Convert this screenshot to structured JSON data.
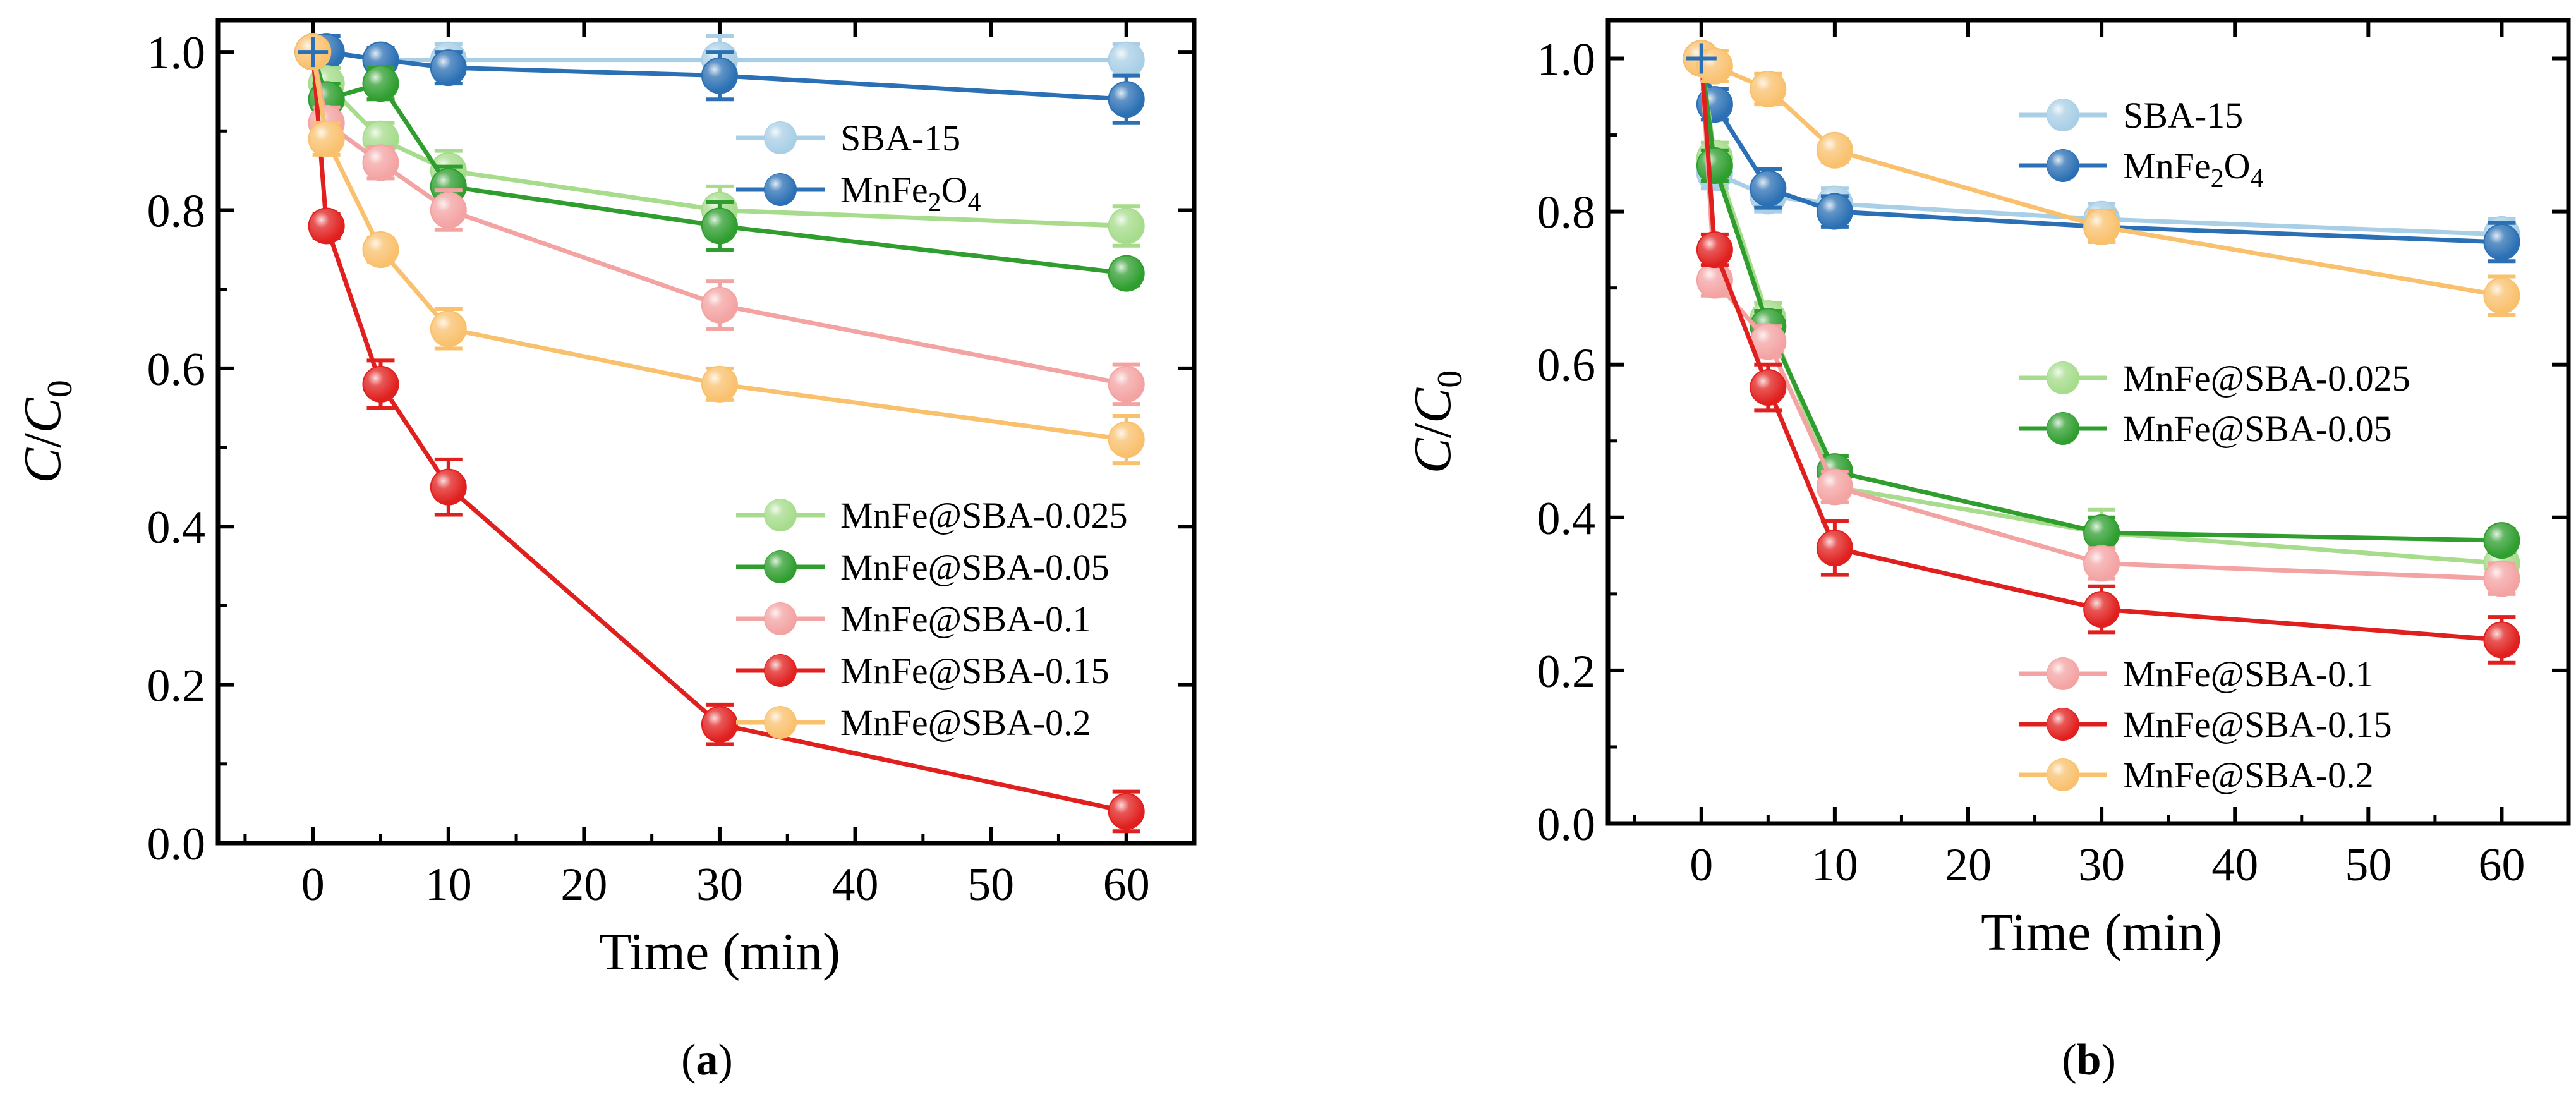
{
  "chart_data": [
    {
      "panel": "a",
      "type": "line",
      "caption": "(a)",
      "caption_bold": "a",
      "xlabel": "Time (min)",
      "ylabel_main": "C",
      "ylabel_sep": "/",
      "ylabel_sub": "0",
      "xlim": [
        -7,
        65
      ],
      "ylim": [
        0,
        1.04
      ],
      "xticks": [
        0,
        10,
        20,
        30,
        40,
        50,
        60
      ],
      "yticks": [
        0.0,
        0.2,
        0.4,
        0.6,
        0.8,
        1.0
      ],
      "ytick_labels": [
        "0.0",
        "0.2",
        "0.4",
        "0.6",
        "0.8",
        "1.0"
      ],
      "legend_groups": [
        {
          "anchor": "upper",
          "series": [
            "SBA-15",
            "MnFe2O4"
          ]
        },
        {
          "anchor": "lower",
          "series": [
            "MnFe@SBA-0.025",
            "MnFe@SBA-0.05",
            "MnFe@SBA-0.1",
            "MnFe@SBA-0.15",
            "MnFe@SBA-0.2"
          ]
        }
      ],
      "x": [
        0,
        1,
        5,
        10,
        30,
        60
      ],
      "series": [
        {
          "name": "SBA-15",
          "legend": "SBA-15",
          "color": "#a9cfe6",
          "values": [
            1.0,
            1.0,
            0.99,
            0.99,
            0.99,
            0.99
          ],
          "err": [
            0.0,
            0.02,
            0.015,
            0.02,
            0.03,
            0.02
          ]
        },
        {
          "name": "MnFe2O4",
          "legend_base": "MnFe",
          "legend_sub1": "2",
          "legend_mid": "O",
          "legend_sub2": "4",
          "color": "#2b70b4",
          "values": [
            1.0,
            1.0,
            0.99,
            0.98,
            0.97,
            0.94
          ],
          "err": [
            0.0,
            0.02,
            0.015,
            0.02,
            0.03,
            0.03
          ]
        },
        {
          "name": "MnFe@SBA-0.025",
          "legend": "MnFe@SBA-0.025",
          "color": "#a6dc8c",
          "values": [
            1.0,
            0.96,
            0.89,
            0.85,
            0.8,
            0.78
          ],
          "err": [
            0.0,
            0.02,
            0.02,
            0.025,
            0.03,
            0.025
          ]
        },
        {
          "name": "MnFe@SBA-0.05",
          "legend": "MnFe@SBA-0.05",
          "color": "#2f9e2f",
          "values": [
            1.0,
            0.94,
            0.96,
            0.83,
            0.78,
            0.72
          ],
          "err": [
            0.0,
            0.02,
            0.02,
            0.025,
            0.03,
            0.015
          ]
        },
        {
          "name": "MnFe@SBA-0.1",
          "legend": "MnFe@SBA-0.1",
          "color": "#f4a3a3",
          "values": [
            1.0,
            0.91,
            0.86,
            0.8,
            0.68,
            0.58
          ],
          "err": [
            0.0,
            0.02,
            0.02,
            0.025,
            0.03,
            0.025
          ]
        },
        {
          "name": "MnFe@SBA-0.15",
          "legend": "MnFe@SBA-0.15",
          "color": "#e0201e",
          "values": [
            1.0,
            0.78,
            0.58,
            0.45,
            0.15,
            0.04
          ],
          "err": [
            0.0,
            0.015,
            0.03,
            0.035,
            0.025,
            0.025
          ]
        },
        {
          "name": "MnFe@SBA-0.2",
          "legend": "MnFe@SBA-0.2",
          "color": "#f9c16e",
          "values": [
            1.0,
            0.89,
            0.75,
            0.65,
            0.58,
            0.51
          ],
          "err": [
            0.0,
            0.02,
            0.015,
            0.025,
            0.02,
            0.03
          ]
        }
      ]
    },
    {
      "panel": "b",
      "type": "line",
      "caption": "(b)",
      "caption_bold": "b",
      "xlabel": "Time (min)",
      "ylabel_main": "C",
      "ylabel_sep": "/",
      "ylabel_sub": "0",
      "xlim": [
        -7,
        65
      ],
      "ylim": [
        0,
        1.05
      ],
      "xticks": [
        0,
        10,
        20,
        30,
        40,
        50,
        60
      ],
      "yticks": [
        0.0,
        0.2,
        0.4,
        0.6,
        0.8,
        1.0
      ],
      "ytick_labels": [
        "0.0",
        "0.2",
        "0.4",
        "0.6",
        "0.8",
        "1.0"
      ],
      "legend_groups": [
        {
          "anchor": "upper",
          "series": [
            "SBA-15",
            "MnFe2O4"
          ]
        },
        {
          "anchor": "middle",
          "series": [
            "MnFe@SBA-0.025",
            "MnFe@SBA-0.05"
          ]
        },
        {
          "anchor": "lower",
          "series": [
            "MnFe@SBA-0.1",
            "MnFe@SBA-0.15",
            "MnFe@SBA-0.2"
          ]
        }
      ],
      "x": [
        0,
        1,
        5,
        10,
        30,
        60
      ],
      "series": [
        {
          "name": "SBA-15",
          "legend": "SBA-15",
          "color": "#a9cfe6",
          "values": [
            1.0,
            0.85,
            0.82,
            0.81,
            0.79,
            0.77
          ],
          "err": [
            0.0,
            0.02,
            0.02,
            0.02,
            0.02,
            0.02
          ]
        },
        {
          "name": "MnFe2O4",
          "legend_base": "MnFe",
          "legend_sub1": "2",
          "legend_mid": "O",
          "legend_sub2": "4",
          "color": "#2b70b4",
          "values": [
            1.0,
            0.94,
            0.83,
            0.8,
            0.78,
            0.76
          ],
          "err": [
            0.0,
            0.02,
            0.025,
            0.02,
            0.02,
            0.025
          ]
        },
        {
          "name": "MnFe@SBA-0.025",
          "legend": "MnFe@SBA-0.025",
          "color": "#a6dc8c",
          "values": [
            1.0,
            0.87,
            0.66,
            0.44,
            0.38,
            0.34
          ],
          "err": [
            0.0,
            0.02,
            0.02,
            0.02,
            0.03,
            0.02
          ]
        },
        {
          "name": "MnFe@SBA-0.05",
          "legend": "MnFe@SBA-0.05",
          "color": "#2f9e2f",
          "values": [
            1.0,
            0.86,
            0.65,
            0.46,
            0.38,
            0.37
          ],
          "err": [
            0.0,
            0.02,
            0.02,
            0.02,
            0.02,
            0.015
          ]
        },
        {
          "name": "MnFe@SBA-0.1",
          "legend": "MnFe@SBA-0.1",
          "color": "#f4a3a3",
          "values": [
            1.0,
            0.71,
            0.63,
            0.44,
            0.34,
            0.32
          ],
          "err": [
            0.0,
            0.02,
            0.02,
            0.02,
            0.02,
            0.02
          ]
        },
        {
          "name": "MnFe@SBA-0.15",
          "legend": "MnFe@SBA-0.15",
          "color": "#e0201e",
          "values": [
            1.0,
            0.75,
            0.57,
            0.36,
            0.28,
            0.24
          ],
          "err": [
            0.0,
            0.02,
            0.03,
            0.035,
            0.03,
            0.03
          ]
        },
        {
          "name": "MnFe@SBA-0.2",
          "legend": "MnFe@SBA-0.2",
          "color": "#f9c16e",
          "values": [
            1.0,
            0.99,
            0.96,
            0.88,
            0.78,
            0.69
          ],
          "err": [
            0.0,
            0.02,
            0.02,
            0.015,
            0.02,
            0.025
          ]
        }
      ]
    }
  ]
}
